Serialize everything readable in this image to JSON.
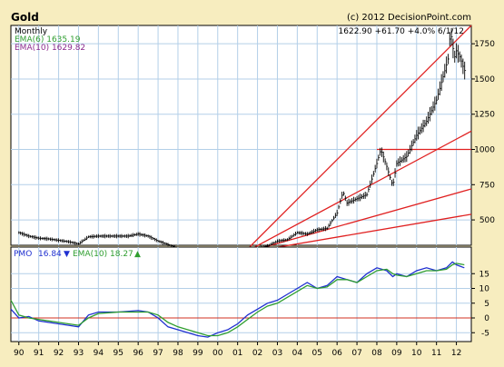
{
  "header": {
    "title": "Gold",
    "copyright": "(c) 2012 DecisionPoint.com",
    "quote": "1622.90 +61.70 +4.0% 6/1/12"
  },
  "legend_top": {
    "period": "Monthly",
    "ema6": "EMA(6) 1635.19",
    "ema10": "EMA(10) 1629.82"
  },
  "legend_bottom": {
    "pmo": "PMO",
    "pmo_value": "16.84",
    "ema10": "EMA(10)",
    "ema10_value": "18.27"
  },
  "colors": {
    "background": "#f7edbf",
    "panel": "#ffffff",
    "grid": "#b3cfe8",
    "price_bars": "#000000",
    "trendline": "#e02020",
    "pmo_line": "#1f2fd0",
    "pmo_signal": "#2f9e2f",
    "zero_line": "#d23020",
    "ema6_text": "#2f9e2f",
    "ema10_text": "#8e2b8e",
    "down_arrow": "#1f2fd0",
    "up_arrow": "#2f9e2f"
  },
  "chart_data": [
    {
      "type": "line",
      "name": "price_panel",
      "xlabel": "",
      "ylabel": "",
      "x_ticks": [
        "90",
        "91",
        "92",
        "93",
        "94",
        "95",
        "96",
        "97",
        "98",
        "99",
        "00",
        "01",
        "02",
        "03",
        "04",
        "05",
        "06",
        "07",
        "08",
        "09",
        "10",
        "11",
        "12"
      ],
      "y_ticks": [
        500,
        750,
        1000,
        1250,
        1500,
        1750
      ],
      "ylim": [
        320,
        1880
      ],
      "xlim": [
        1989.6,
        2012.75
      ],
      "grid": true,
      "series": [
        {
          "series_type": "price",
          "x": [
            1990.0,
            1990.5,
            1991.0,
            1991.5,
            1992.0,
            1992.5,
            1993.0,
            1993.5,
            1994.0,
            1994.5,
            1995.0,
            1995.5,
            1996.0,
            1996.5,
            1997.0,
            1997.5,
            1998.0,
            1998.5,
            1999.0,
            1999.5,
            2000.0,
            2000.5,
            2001.0,
            2001.5,
            2002.0,
            2002.5,
            2003.0,
            2003.5,
            2004.0,
            2004.5,
            2005.0,
            2005.5,
            2006.0,
            2006.3,
            2006.5,
            2007.0,
            2007.5,
            2008.0,
            2008.2,
            2008.5,
            2008.8,
            2009.0,
            2009.5,
            2010.0,
            2010.5,
            2011.0,
            2011.3,
            2011.6,
            2011.7,
            2011.9,
            2012.0,
            2012.2,
            2012.4
          ],
          "y": [
            410,
            385,
            370,
            365,
            355,
            345,
            330,
            380,
            385,
            385,
            385,
            385,
            400,
            385,
            350,
            325,
            300,
            290,
            285,
            280,
            285,
            275,
            265,
            265,
            300,
            315,
            350,
            360,
            410,
            400,
            430,
            440,
            550,
            700,
            620,
            650,
            680,
            900,
            1000,
            880,
            740,
            900,
            950,
            1100,
            1200,
            1350,
            1500,
            1650,
            1850,
            1650,
            1700,
            1650,
            1560
          ]
        }
      ],
      "trendlines": [
        {
          "from": [
            2001.3,
            265
          ],
          "to": [
            2012.75,
            1880
          ]
        },
        {
          "from": [
            2001.3,
            265
          ],
          "to": [
            2012.75,
            1130
          ]
        },
        {
          "from": [
            2001.3,
            265
          ],
          "to": [
            2012.75,
            720
          ]
        },
        {
          "from": [
            2001.3,
            265
          ],
          "to": [
            2012.75,
            540
          ]
        },
        {
          "from": [
            2008.0,
            1000
          ],
          "to": [
            2012.75,
            1000
          ]
        }
      ]
    },
    {
      "type": "line",
      "name": "pmo_panel",
      "y_ticks": [
        -5,
        0,
        5,
        10,
        15
      ],
      "ylim": [
        -8,
        24
      ],
      "xlim": [
        1989.6,
        2012.75
      ],
      "grid": true,
      "series": [
        {
          "name": "PMO",
          "x": [
            1989.6,
            1990.0,
            1990.5,
            1991.0,
            1991.5,
            1992.0,
            1992.5,
            1993.0,
            1993.5,
            1994.0,
            1995.0,
            1996.0,
            1996.5,
            1997.0,
            1997.5,
            1998.0,
            1998.5,
            1999.0,
            1999.5,
            2000.0,
            2000.5,
            2001.0,
            2001.5,
            2002.0,
            2002.5,
            2003.0,
            2003.5,
            2004.0,
            2004.5,
            2005.0,
            2005.5,
            2006.0,
            2006.5,
            2007.0,
            2007.5,
            2008.0,
            2008.5,
            2008.8,
            2009.0,
            2009.5,
            2010.0,
            2010.5,
            2011.0,
            2011.5,
            2011.8,
            2012.0,
            2012.4
          ],
          "y": [
            3,
            0,
            0.5,
            -1,
            -1.5,
            -2,
            -2.5,
            -3,
            1,
            2,
            2,
            2.5,
            2,
            0,
            -3,
            -4,
            -5,
            -6,
            -6.5,
            -5,
            -4,
            -2,
            1,
            3,
            5,
            6,
            8,
            10,
            12,
            10,
            11,
            14,
            13,
            12,
            15,
            17,
            16,
            14,
            15,
            14,
            16,
            17,
            16,
            17,
            19,
            18,
            17
          ]
        },
        {
          "name": "EMA(10)",
          "x": [
            1989.6,
            1990.0,
            1990.5,
            1991.0,
            1991.5,
            1992.0,
            1992.5,
            1993.0,
            1993.5,
            1994.0,
            1995.0,
            1996.0,
            1996.5,
            1997.0,
            1997.5,
            1998.0,
            1998.5,
            1999.0,
            1999.5,
            2000.0,
            2000.5,
            2001.0,
            2001.5,
            2002.0,
            2002.5,
            2003.0,
            2003.5,
            2004.0,
            2004.5,
            2005.0,
            2005.5,
            2006.0,
            2006.5,
            2007.0,
            2007.5,
            2008.0,
            2008.5,
            2008.8,
            2009.0,
            2009.5,
            2010.0,
            2010.5,
            2011.0,
            2011.5,
            2011.8,
            2012.0,
            2012.4
          ],
          "y": [
            6,
            1,
            0,
            -0.5,
            -1,
            -1.5,
            -2,
            -2.5,
            0,
            1.5,
            2,
            2,
            2,
            1,
            -1.5,
            -3,
            -4,
            -5,
            -6,
            -6,
            -5,
            -3,
            -0.5,
            2,
            4,
            5,
            7,
            9,
            11,
            10,
            10.5,
            13,
            13,
            12,
            14,
            16,
            16.5,
            15,
            14.5,
            14,
            15,
            16,
            16,
            16.5,
            18,
            18.5,
            18
          ]
        }
      ]
    }
  ]
}
